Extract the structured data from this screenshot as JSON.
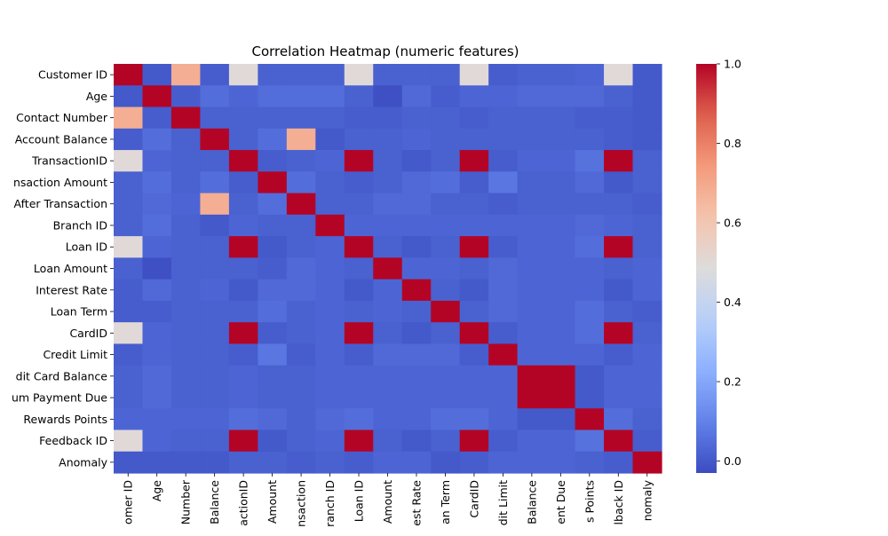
{
  "chart_data": {
    "type": "heatmap",
    "title": "Correlation Heatmap (numeric features)",
    "xlabel": "",
    "ylabel": "",
    "colormap": "coolwarm",
    "color_range": [
      -0.03,
      1.0
    ],
    "colorbar_ticks": [
      "0.0",
      "0.2",
      "0.4",
      "0.6",
      "0.8",
      "1.0"
    ],
    "colorbar_tick_values": [
      0.0,
      0.2,
      0.4,
      0.6,
      0.8,
      1.0
    ],
    "row_labels": [
      "Customer ID",
      "Age",
      "Contact Number",
      "Account Balance",
      "TransactionID",
      "nsaction Amount",
      "After Transaction",
      "Branch ID",
      "Loan ID",
      "Loan Amount",
      "Interest Rate",
      "Loan Term",
      "CardID",
      "Credit Limit",
      "dit Card Balance",
      "um Payment Due",
      "Rewards Points",
      "Feedback ID",
      "Anomaly"
    ],
    "col_labels": [
      "omer ID",
      "Age",
      "Number",
      "Balance",
      "actionID",
      "Amount",
      "nsaction",
      "ranch ID",
      "Loan ID",
      "Amount",
      "est Rate",
      "an Term",
      "CardID",
      "dit Limit",
      "Balance",
      "ent Due",
      "s Points",
      "lback ID",
      "nomaly"
    ],
    "matrix": [
      [
        1.0,
        0.0,
        0.68,
        0.01,
        0.5,
        0.02,
        0.02,
        0.02,
        0.5,
        0.02,
        0.02,
        0.02,
        0.5,
        0.01,
        0.02,
        0.02,
        0.03,
        0.5,
        0.0
      ],
      [
        0.0,
        1.0,
        0.01,
        0.05,
        0.03,
        0.05,
        0.05,
        0.05,
        0.02,
        -0.02,
        0.04,
        0.01,
        0.03,
        0.03,
        0.04,
        0.04,
        0.04,
        0.02,
        0.0
      ],
      [
        0.68,
        0.01,
        1.0,
        0.02,
        0.02,
        0.02,
        0.02,
        0.02,
        0.01,
        0.01,
        0.02,
        0.02,
        0.01,
        0.02,
        0.02,
        0.02,
        0.01,
        0.01,
        0.0
      ],
      [
        0.01,
        0.05,
        0.02,
        1.0,
        0.02,
        0.05,
        0.68,
        0.0,
        0.02,
        0.02,
        0.03,
        0.02,
        0.02,
        0.02,
        0.02,
        0.02,
        0.02,
        0.01,
        0.0
      ],
      [
        0.5,
        0.03,
        0.02,
        0.02,
        1.0,
        0.01,
        0.02,
        0.03,
        1.0,
        0.02,
        0.0,
        0.02,
        1.0,
        0.01,
        0.03,
        0.03,
        0.06,
        1.0,
        0.02
      ],
      [
        0.02,
        0.05,
        0.02,
        0.05,
        0.01,
        1.0,
        0.05,
        0.02,
        0.01,
        0.02,
        0.04,
        0.05,
        0.01,
        0.07,
        0.02,
        0.02,
        0.04,
        0.0,
        0.02
      ],
      [
        0.02,
        0.04,
        0.03,
        0.68,
        0.02,
        0.05,
        1.0,
        0.02,
        0.02,
        0.04,
        0.04,
        0.02,
        0.02,
        0.01,
        0.02,
        0.02,
        0.02,
        0.02,
        0.01
      ],
      [
        0.02,
        0.05,
        0.02,
        0.0,
        0.03,
        0.02,
        0.02,
        1.0,
        0.03,
        0.03,
        0.03,
        0.03,
        0.03,
        0.03,
        0.03,
        0.03,
        0.04,
        0.03,
        0.02
      ],
      [
        0.5,
        0.03,
        0.02,
        0.02,
        1.0,
        0.0,
        0.02,
        0.03,
        1.0,
        0.02,
        0.0,
        0.02,
        1.0,
        0.01,
        0.03,
        0.03,
        0.05,
        1.0,
        0.02
      ],
      [
        0.02,
        -0.02,
        0.02,
        0.02,
        0.02,
        0.01,
        0.04,
        0.03,
        0.02,
        1.0,
        0.03,
        0.03,
        0.02,
        0.04,
        0.03,
        0.03,
        0.03,
        0.02,
        0.03
      ],
      [
        0.01,
        0.04,
        0.02,
        0.03,
        0.0,
        0.04,
        0.04,
        0.03,
        0.0,
        0.03,
        1.0,
        0.02,
        0.0,
        0.04,
        0.03,
        0.03,
        0.03,
        0.0,
        0.03
      ],
      [
        0.01,
        0.01,
        0.02,
        0.02,
        0.02,
        0.05,
        0.02,
        0.03,
        0.02,
        0.03,
        0.02,
        1.0,
        0.02,
        0.04,
        0.03,
        0.03,
        0.05,
        0.02,
        0.01
      ],
      [
        0.5,
        0.03,
        0.02,
        0.02,
        1.0,
        0.01,
        0.02,
        0.03,
        1.0,
        0.02,
        0.0,
        0.02,
        1.0,
        0.01,
        0.03,
        0.03,
        0.05,
        1.0,
        0.02
      ],
      [
        0.01,
        0.03,
        0.02,
        0.02,
        0.01,
        0.07,
        0.01,
        0.03,
        0.01,
        0.04,
        0.04,
        0.04,
        0.01,
        1.0,
        0.03,
        0.03,
        0.03,
        0.01,
        0.03
      ],
      [
        0.02,
        0.04,
        0.02,
        0.02,
        0.03,
        0.02,
        0.02,
        0.03,
        0.03,
        0.03,
        0.03,
        0.03,
        0.03,
        0.03,
        1.0,
        1.0,
        0.0,
        0.03,
        0.03
      ],
      [
        0.02,
        0.04,
        0.02,
        0.02,
        0.03,
        0.02,
        0.02,
        0.03,
        0.03,
        0.03,
        0.03,
        0.03,
        0.03,
        0.03,
        1.0,
        1.0,
        0.0,
        0.03,
        0.03
      ],
      [
        0.03,
        0.03,
        0.03,
        0.03,
        0.05,
        0.04,
        0.02,
        0.04,
        0.05,
        0.03,
        0.03,
        0.05,
        0.05,
        0.03,
        0.0,
        0.0,
        1.0,
        0.05,
        0.02
      ],
      [
        0.5,
        0.03,
        0.02,
        0.02,
        1.0,
        0.0,
        0.02,
        0.03,
        1.0,
        0.02,
        0.0,
        0.02,
        1.0,
        0.01,
        0.03,
        0.03,
        0.06,
        1.0,
        0.01
      ],
      [
        0.0,
        0.0,
        0.0,
        0.0,
        0.02,
        0.02,
        0.01,
        0.02,
        0.01,
        0.03,
        0.03,
        0.0,
        0.01,
        0.03,
        0.03,
        0.03,
        0.02,
        0.01,
        1.0
      ]
    ]
  }
}
